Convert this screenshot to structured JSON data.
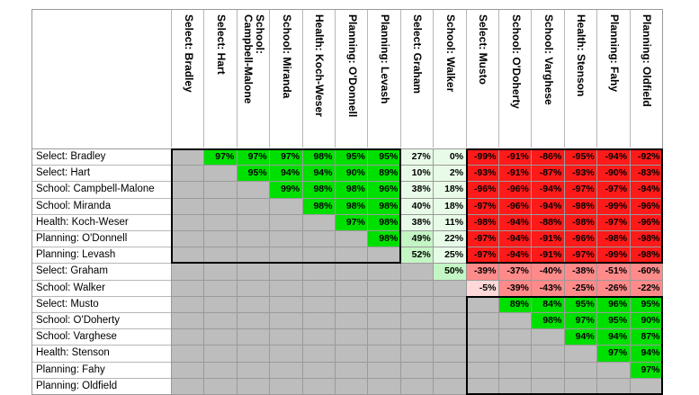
{
  "columns": [
    "Select: Bradley",
    "Select: Hart",
    "School: Campbell-Malone",
    "School: Miranda",
    "Health: Koch-Weser",
    "Planning: O'Donnell",
    "Planning: Levash",
    "Select: Graham",
    "School: Walker",
    "Select: Musto",
    "School: O'Doherty",
    "School: Varghese",
    "Health: Stenson",
    "Planning: Fahy",
    "Planning: Oldfield"
  ],
  "column_headers": [
    "Select: Bradley",
    "Select: Hart",
    "School:\nCampbell-Malone",
    "School: Miranda",
    "Health: Koch-Weser",
    "Planning: O'Donnell",
    "Planning: Levash",
    "Select: Graham",
    "School: Walker",
    "Select: Musto",
    "School: O'Doherty",
    "School: Varghese",
    "Health: Stenson",
    "Planning: Fahy",
    "Planning: Oldfield"
  ],
  "rows": [
    {
      "label": "Select: Bradley",
      "values": [
        null,
        "97%",
        "97%",
        "97%",
        "98%",
        "95%",
        "95%",
        "27%",
        "0%",
        "-99%",
        "-91%",
        "-86%",
        "-95%",
        "-94%",
        "-92%"
      ]
    },
    {
      "label": "Select: Hart",
      "values": [
        null,
        null,
        "95%",
        "94%",
        "94%",
        "90%",
        "89%",
        "10%",
        "2%",
        "-93%",
        "-91%",
        "-87%",
        "-93%",
        "-90%",
        "-83%"
      ]
    },
    {
      "label": "School: Campbell-Malone",
      "values": [
        null,
        null,
        null,
        "99%",
        "98%",
        "98%",
        "96%",
        "38%",
        "18%",
        "-96%",
        "-96%",
        "-94%",
        "-97%",
        "-97%",
        "-94%"
      ]
    },
    {
      "label": "School: Miranda",
      "values": [
        null,
        null,
        null,
        null,
        "98%",
        "98%",
        "98%",
        "40%",
        "18%",
        "-97%",
        "-96%",
        "-94%",
        "-98%",
        "-99%",
        "-96%"
      ]
    },
    {
      "label": "Health: Koch-Weser",
      "values": [
        null,
        null,
        null,
        null,
        null,
        "97%",
        "98%",
        "38%",
        "11%",
        "-98%",
        "-94%",
        "-88%",
        "-98%",
        "-97%",
        "-96%"
      ]
    },
    {
      "label": "Planning: O'Donnell",
      "values": [
        null,
        null,
        null,
        null,
        null,
        null,
        "98%",
        "49%",
        "22%",
        "-97%",
        "-94%",
        "-91%",
        "-96%",
        "-98%",
        "-98%"
      ]
    },
    {
      "label": "Planning: Levash",
      "values": [
        null,
        null,
        null,
        null,
        null,
        null,
        null,
        "52%",
        "25%",
        "-97%",
        "-94%",
        "-91%",
        "-97%",
        "-99%",
        "-98%"
      ]
    },
    {
      "label": "Select: Graham",
      "values": [
        null,
        null,
        null,
        null,
        null,
        null,
        null,
        null,
        "50%",
        "-39%",
        "-37%",
        "-40%",
        "-38%",
        "-51%",
        "-60%"
      ]
    },
    {
      "label": "School: Walker",
      "values": [
        null,
        null,
        null,
        null,
        null,
        null,
        null,
        null,
        null,
        "-5%",
        "-39%",
        "-43%",
        "-25%",
        "-26%",
        "-22%"
      ]
    },
    {
      "label": "Select: Musto",
      "values": [
        null,
        null,
        null,
        null,
        null,
        null,
        null,
        null,
        null,
        null,
        "89%",
        "84%",
        "95%",
        "96%",
        "95%"
      ]
    },
    {
      "label": "School: O'Doherty",
      "values": [
        null,
        null,
        null,
        null,
        null,
        null,
        null,
        null,
        null,
        null,
        null,
        "98%",
        "97%",
        "95%",
        "90%"
      ]
    },
    {
      "label": "School: Varghese",
      "values": [
        null,
        null,
        null,
        null,
        null,
        null,
        null,
        null,
        null,
        null,
        null,
        null,
        "94%",
        "94%",
        "87%"
      ]
    },
    {
      "label": "Health: Stenson",
      "values": [
        null,
        null,
        null,
        null,
        null,
        null,
        null,
        null,
        null,
        null,
        null,
        null,
        null,
        "97%",
        "94%"
      ]
    },
    {
      "label": "Planning: Fahy",
      "values": [
        null,
        null,
        null,
        null,
        null,
        null,
        null,
        null,
        null,
        null,
        null,
        null,
        null,
        null,
        "97%"
      ]
    },
    {
      "label": "Planning: Oldfield",
      "values": [
        null,
        null,
        null,
        null,
        null,
        null,
        null,
        null,
        null,
        null,
        null,
        null,
        null,
        null,
        null
      ]
    }
  ],
  "colors": {
    "empty": "#bdbdbd",
    "strong_positive": "#00e000",
    "weak_positive": "#c4f5c4",
    "faint_positive": "#e8fbe8",
    "strong_negative": "#ff1a1a",
    "medium_negative": "#ff8a8a",
    "faint_negative": "#ffd9d9"
  }
}
